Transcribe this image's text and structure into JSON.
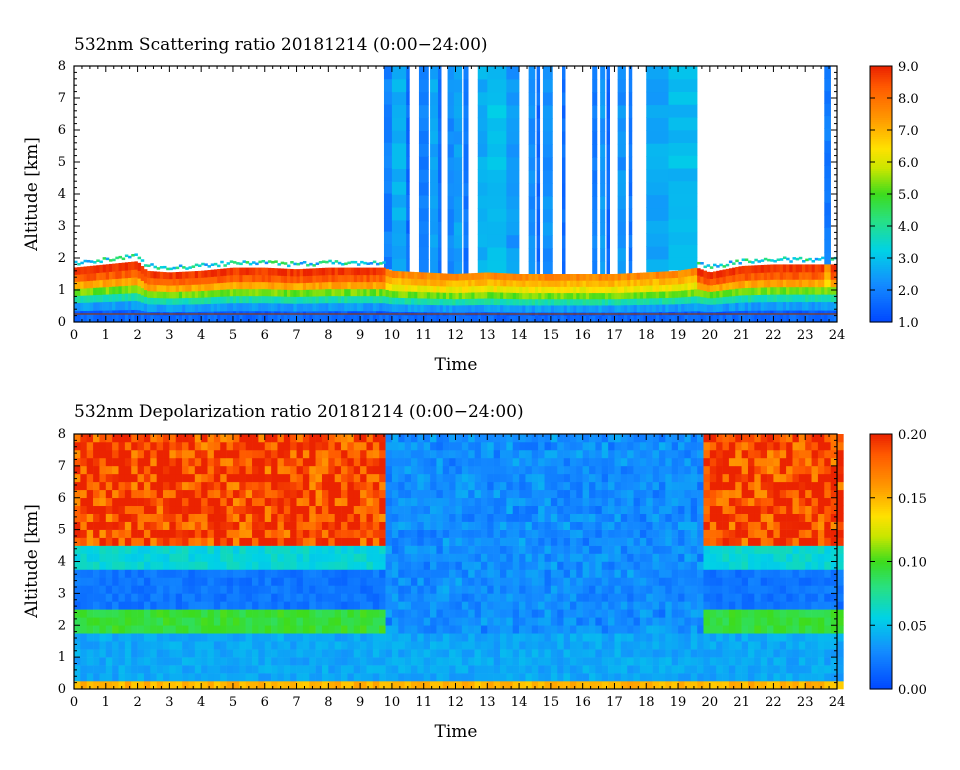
{
  "chart_data": [
    {
      "type": "heatmap",
      "title": "532nm Scattering ratio  20181214 (0:00−24:00)",
      "xlabel": "Time",
      "ylabel": "Altitude [km]",
      "xlim": [
        0,
        24
      ],
      "ylim": [
        0,
        8
      ],
      "x_ticks": [
        "0",
        "1",
        "2",
        "3",
        "4",
        "5",
        "6",
        "7",
        "8",
        "9",
        "10",
        "11",
        "12",
        "13",
        "14",
        "15",
        "16",
        "17",
        "18",
        "19",
        "20",
        "21",
        "22",
        "23",
        "24"
      ],
      "y_ticks": [
        "0",
        "1",
        "2",
        "3",
        "4",
        "5",
        "6",
        "7",
        "8"
      ],
      "colorbar": {
        "range": [
          1.0,
          9.0
        ],
        "tick_labels": [
          "1.0",
          "2.0",
          "3.0",
          "4.0",
          "5.0",
          "6.0",
          "7.0",
          "8.0",
          "9.0"
        ],
        "colormap": "blue-cyan-green-yellow-orange-red"
      },
      "cloud_columns": [
        {
          "start": 9.75,
          "end": 10.0,
          "value": 2.0
        },
        {
          "start": 10.0,
          "end": 10.45,
          "value": 2.7
        },
        {
          "start": 10.45,
          "end": 10.55,
          "value": 1.6
        },
        {
          "start": 10.85,
          "end": 11.15,
          "value": 2.0
        },
        {
          "start": 11.2,
          "end": 11.45,
          "value": 2.6
        },
        {
          "start": 11.45,
          "end": 11.55,
          "value": 1.7
        },
        {
          "start": 11.75,
          "end": 11.95,
          "value": 2.2
        },
        {
          "start": 11.95,
          "end": 12.2,
          "value": 2.5
        },
        {
          "start": 12.25,
          "end": 12.4,
          "value": 1.8
        },
        {
          "start": 12.7,
          "end": 13.0,
          "value": 2.7
        },
        {
          "start": 13.0,
          "end": 13.6,
          "value": 3.0
        },
        {
          "start": 13.6,
          "end": 14.0,
          "value": 2.4
        },
        {
          "start": 14.3,
          "end": 14.5,
          "value": 2.2
        },
        {
          "start": 14.55,
          "end": 14.65,
          "value": 1.6
        },
        {
          "start": 14.75,
          "end": 15.05,
          "value": 2.3
        },
        {
          "start": 15.35,
          "end": 15.45,
          "value": 1.7
        },
        {
          "start": 16.3,
          "end": 16.45,
          "value": 2.0
        },
        {
          "start": 16.55,
          "end": 16.7,
          "value": 2.4
        },
        {
          "start": 16.75,
          "end": 16.85,
          "value": 1.6
        },
        {
          "start": 17.1,
          "end": 17.35,
          "value": 2.3
        },
        {
          "start": 17.45,
          "end": 17.55,
          "value": 1.8
        },
        {
          "start": 18.0,
          "end": 18.7,
          "value": 2.6
        },
        {
          "start": 18.7,
          "end": 19.6,
          "value": 2.9
        },
        {
          "start": 23.6,
          "end": 23.8,
          "value": 1.9
        }
      ],
      "boundary_layer_top_km": [
        [
          0,
          1.7
        ],
        [
          1,
          1.8
        ],
        [
          2,
          1.9
        ],
        [
          2.3,
          1.6
        ],
        [
          3,
          1.55
        ],
        [
          4,
          1.6
        ],
        [
          5,
          1.7
        ],
        [
          6,
          1.7
        ],
        [
          7,
          1.65
        ],
        [
          8,
          1.7
        ],
        [
          9,
          1.7
        ],
        [
          9.75,
          1.7
        ],
        [
          10,
          1.6
        ],
        [
          11,
          1.55
        ],
        [
          12,
          1.5
        ],
        [
          13,
          1.55
        ],
        [
          14,
          1.5
        ],
        [
          15,
          1.5
        ],
        [
          16,
          1.5
        ],
        [
          17,
          1.5
        ],
        [
          18,
          1.55
        ],
        [
          19,
          1.6
        ],
        [
          19.6,
          1.7
        ],
        [
          20,
          1.55
        ],
        [
          21,
          1.75
        ],
        [
          22,
          1.8
        ],
        [
          23,
          1.8
        ],
        [
          24,
          1.8
        ]
      ]
    },
    {
      "type": "heatmap",
      "title": "532nm Depolarization ratio  20181214 (0:00−24:00)",
      "xlabel": "Time",
      "ylabel": "Altitude [km]",
      "xlim": [
        0,
        24
      ],
      "ylim": [
        0,
        8
      ],
      "x_ticks": [
        "0",
        "1",
        "2",
        "3",
        "4",
        "5",
        "6",
        "7",
        "8",
        "9",
        "10",
        "11",
        "12",
        "13",
        "14",
        "15",
        "16",
        "17",
        "18",
        "19",
        "20",
        "21",
        "22",
        "23",
        "24"
      ],
      "y_ticks": [
        "0",
        "1",
        "2",
        "3",
        "4",
        "5",
        "6",
        "7",
        "8"
      ],
      "colorbar": {
        "range": [
          0.0,
          0.2
        ],
        "tick_labels": [
          "0.00",
          "0.05",
          "0.10",
          "0.15",
          "0.20"
        ],
        "colormap": "blue-cyan-green-yellow-orange-red"
      },
      "layers": [
        {
          "alt_range_km": [
            0,
            0.15
          ],
          "value": 0.15
        },
        {
          "alt_range_km": [
            0.15,
            1.8
          ],
          "value": 0.04
        },
        {
          "alt_range_km": [
            1.8,
            2.6
          ],
          "value": 0.095
        },
        {
          "alt_range_km": [
            2.6,
            3.7
          ],
          "value": 0.02
        },
        {
          "alt_range_km": [
            3.7,
            4.6
          ],
          "value": 0.06
        },
        {
          "alt_range_km": [
            4.6,
            8.0
          ],
          "value": 0.19
        }
      ],
      "cloudy_period_hours": [
        9.75,
        19.6
      ],
      "cloudy_value": 0.03
    }
  ]
}
